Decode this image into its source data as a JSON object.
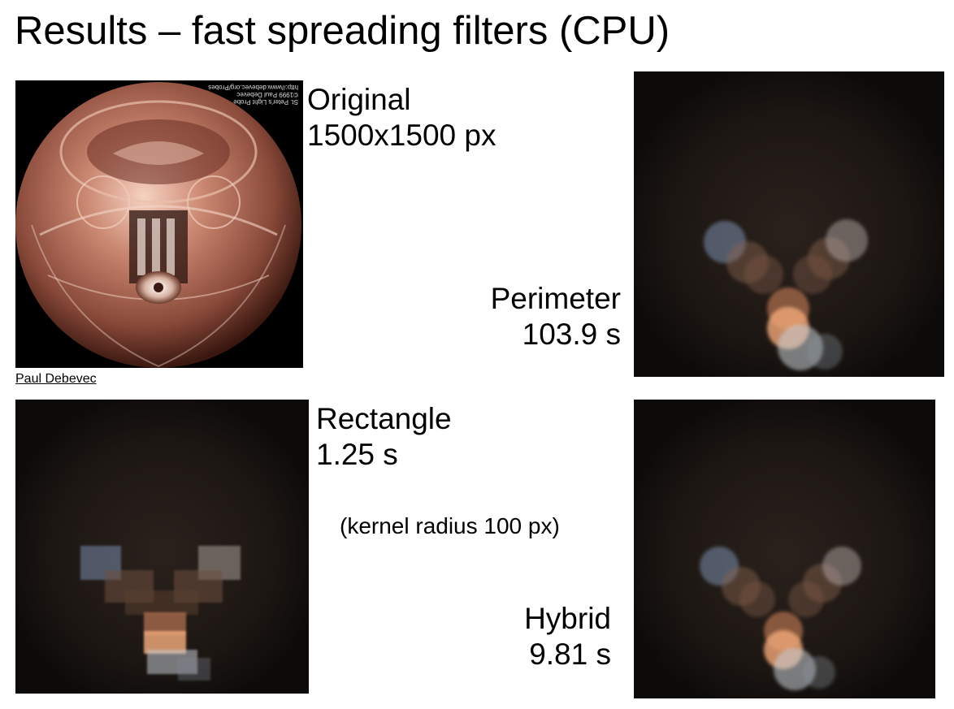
{
  "slide": {
    "title": "Results – fast spreading filters (CPU)",
    "credit": "Paul Debevec",
    "note": "(kernel radius 100 px)"
  },
  "panels": {
    "original": {
      "name": "Original",
      "value": "1500x1500 px",
      "mirror_text": [
        "http://www.debevec.org/Probes",
        "©1999 Paul Debevec",
        "St. Peter's Light Probe"
      ]
    },
    "perimeter": {
      "name": "Perimeter",
      "value": "103.9 s"
    },
    "rectangle": {
      "name": "Rectangle",
      "value": "1.25 s"
    },
    "hybrid": {
      "name": "Hybrid",
      "value": "9.81 s"
    }
  },
  "colors": {
    "background": "#ffffff",
    "probe_copper": "#b9735f",
    "blur_dark": "#1a1410",
    "highlight_orange": "#f0a070",
    "highlight_blue": "#7f95b4"
  }
}
